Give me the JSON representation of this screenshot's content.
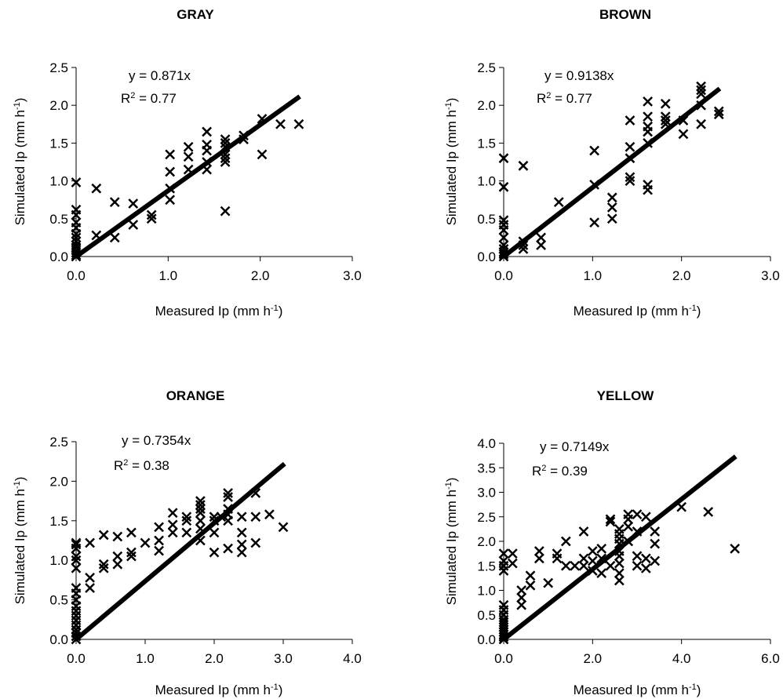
{
  "chart_data": [
    {
      "type": "scatter",
      "title": "GRAY",
      "xlabel": "Measured Ip  (mm h",
      "ylabel": "Simulated Ip  (mm h",
      "label_unit_sup": "-1",
      "label_close": ")",
      "xlim": [
        0,
        3
      ],
      "ylim": [
        0,
        2.5
      ],
      "xticks": [
        "0.0",
        "1.0",
        "2.0",
        "3.0"
      ],
      "yticks": [
        "0.0",
        "0.5",
        "1.0",
        "1.5",
        "2.0",
        "2.5"
      ],
      "fit": {
        "slope": 0.871,
        "x_end": 2.43
      },
      "equation": "y = 0.871x",
      "r2_prefix": "R",
      "r2_sup": "2",
      "r2_value": " = 0.77",
      "points": [
        [
          0,
          0
        ],
        [
          0,
          0.02
        ],
        [
          0,
          0.05
        ],
        [
          0,
          0.08
        ],
        [
          0,
          0.12
        ],
        [
          0,
          0.15
        ],
        [
          0,
          0.2
        ],
        [
          0,
          0.25
        ],
        [
          0,
          0.3
        ],
        [
          0,
          0.38
        ],
        [
          0,
          0.45
        ],
        [
          0,
          0.55
        ],
        [
          0,
          0.62
        ],
        [
          0,
          0.98
        ],
        [
          0.22,
          0.28
        ],
        [
          0.22,
          0.9
        ],
        [
          0.42,
          0.25
        ],
        [
          0.42,
          0.72
        ],
        [
          0.62,
          0.42
        ],
        [
          0.62,
          0.7
        ],
        [
          0.82,
          0.5
        ],
        [
          0.82,
          0.55
        ],
        [
          1.02,
          0.75
        ],
        [
          1.02,
          0.9
        ],
        [
          1.02,
          1.12
        ],
        [
          1.02,
          1.35
        ],
        [
          1.22,
          1.15
        ],
        [
          1.22,
          1.32
        ],
        [
          1.22,
          1.45
        ],
        [
          1.42,
          1.15
        ],
        [
          1.42,
          1.25
        ],
        [
          1.42,
          1.4
        ],
        [
          1.42,
          1.48
        ],
        [
          1.42,
          1.65
        ],
        [
          1.62,
          1.25
        ],
        [
          1.62,
          1.3
        ],
        [
          1.62,
          1.35
        ],
        [
          1.62,
          1.45
        ],
        [
          1.62,
          1.5
        ],
        [
          1.62,
          1.55
        ],
        [
          1.62,
          0.6
        ],
        [
          1.82,
          1.55
        ],
        [
          1.82,
          1.6
        ],
        [
          2.02,
          1.35
        ],
        [
          2.02,
          1.82
        ],
        [
          2.22,
          1.75
        ],
        [
          2.42,
          1.75
        ]
      ]
    },
    {
      "type": "scatter",
      "title": "BROWN",
      "xlabel": "Measured Ip  (mm h",
      "ylabel": "Simulated Ip  (mm h",
      "label_unit_sup": "-1",
      "label_close": ")",
      "xlim": [
        0,
        3
      ],
      "ylim": [
        0,
        2.5
      ],
      "xticks": [
        "0.0",
        "1.0",
        "2.0",
        "3.0"
      ],
      "yticks": [
        "0.0",
        "0.5",
        "1.0",
        "1.5",
        "2.0",
        "2.5"
      ],
      "fit": {
        "slope": 0.9138,
        "x_end": 2.43
      },
      "equation": "y = 0.9138x",
      "r2_prefix": "R",
      "r2_sup": "2",
      "r2_value": " = 0.77",
      "points": [
        [
          0,
          0
        ],
        [
          0,
          0.03
        ],
        [
          0,
          0.06
        ],
        [
          0,
          0.1
        ],
        [
          0,
          0.15
        ],
        [
          0,
          0.25
        ],
        [
          0,
          0.35
        ],
        [
          0,
          0.42
        ],
        [
          0,
          0.48
        ],
        [
          0,
          0.92
        ],
        [
          0,
          1.3
        ],
        [
          0.22,
          0.1
        ],
        [
          0.22,
          0.15
        ],
        [
          0.22,
          0.2
        ],
        [
          0.22,
          1.2
        ],
        [
          0.42,
          0.15
        ],
        [
          0.42,
          0.25
        ],
        [
          0.62,
          0.72
        ],
        [
          1.02,
          0.45
        ],
        [
          1.02,
          0.95
        ],
        [
          1.02,
          1.4
        ],
        [
          1.22,
          0.5
        ],
        [
          1.22,
          0.65
        ],
        [
          1.22,
          0.78
        ],
        [
          1.42,
          1.0
        ],
        [
          1.42,
          1.05
        ],
        [
          1.42,
          1.3
        ],
        [
          1.42,
          1.45
        ],
        [
          1.42,
          1.8
        ],
        [
          1.62,
          0.88
        ],
        [
          1.62,
          0.95
        ],
        [
          1.62,
          1.5
        ],
        [
          1.62,
          1.65
        ],
        [
          1.62,
          1.72
        ],
        [
          1.62,
          1.85
        ],
        [
          1.62,
          2.05
        ],
        [
          1.82,
          1.75
        ],
        [
          1.82,
          1.8
        ],
        [
          1.82,
          1.85
        ],
        [
          1.82,
          2.02
        ],
        [
          2.02,
          1.62
        ],
        [
          2.02,
          1.8
        ],
        [
          2.22,
          1.75
        ],
        [
          2.22,
          2.0
        ],
        [
          2.22,
          2.15
        ],
        [
          2.22,
          2.2
        ],
        [
          2.22,
          2.25
        ],
        [
          2.42,
          1.88
        ],
        [
          2.42,
          1.92
        ]
      ]
    },
    {
      "type": "scatter",
      "title": "ORANGE",
      "xlabel": "Measured Ip  (mm h",
      "ylabel": "Simulated Ip  (mm h",
      "label_unit_sup": "-1",
      "label_close": ")",
      "xlim": [
        0,
        4
      ],
      "ylim": [
        0,
        2.5
      ],
      "xticks": [
        "0.0",
        "1.0",
        "2.0",
        "3.0",
        "4.0"
      ],
      "yticks": [
        "0.0",
        "0.5",
        "1.0",
        "1.5",
        "2.0",
        "2.5"
      ],
      "fit": {
        "slope": 0.7354,
        "x_end": 3.02
      },
      "equation": "y = 0.7354x",
      "r2_prefix": "R",
      "r2_sup": "2",
      "r2_value": " = 0.38",
      "points": [
        [
          0,
          0
        ],
        [
          0,
          0.04
        ],
        [
          0,
          0.08
        ],
        [
          0,
          0.12
        ],
        [
          0,
          0.18
        ],
        [
          0,
          0.24
        ],
        [
          0,
          0.3
        ],
        [
          0,
          0.36
        ],
        [
          0,
          0.42
        ],
        [
          0,
          0.5
        ],
        [
          0,
          0.58
        ],
        [
          0,
          0.65
        ],
        [
          0,
          0.9
        ],
        [
          0,
          1.0
        ],
        [
          0,
          1.05
        ],
        [
          0,
          1.15
        ],
        [
          0,
          1.2
        ],
        [
          0,
          1.22
        ],
        [
          0.2,
          0.65
        ],
        [
          0.2,
          0.78
        ],
        [
          0.2,
          1.22
        ],
        [
          0.4,
          0.9
        ],
        [
          0.4,
          0.95
        ],
        [
          0.4,
          1.32
        ],
        [
          0.6,
          0.95
        ],
        [
          0.6,
          1.05
        ],
        [
          0.6,
          1.3
        ],
        [
          0.8,
          1.05
        ],
        [
          0.8,
          1.1
        ],
        [
          0.8,
          1.35
        ],
        [
          1.0,
          1.22
        ],
        [
          1.2,
          1.12
        ],
        [
          1.2,
          1.25
        ],
        [
          1.2,
          1.42
        ],
        [
          1.4,
          1.35
        ],
        [
          1.4,
          1.45
        ],
        [
          1.4,
          1.6
        ],
        [
          1.6,
          1.35
        ],
        [
          1.6,
          1.5
        ],
        [
          1.6,
          1.55
        ],
        [
          1.8,
          1.25
        ],
        [
          1.8,
          1.4
        ],
        [
          1.8,
          1.5
        ],
        [
          1.8,
          1.6
        ],
        [
          1.8,
          1.65
        ],
        [
          1.8,
          1.7
        ],
        [
          1.8,
          1.75
        ],
        [
          2.0,
          1.1
        ],
        [
          2.0,
          1.35
        ],
        [
          2.0,
          1.5
        ],
        [
          2.0,
          1.55
        ],
        [
          2.1,
          1.55
        ],
        [
          2.2,
          1.15
        ],
        [
          2.2,
          1.5
        ],
        [
          2.2,
          1.58
        ],
        [
          2.2,
          1.65
        ],
        [
          2.2,
          1.8
        ],
        [
          2.2,
          1.85
        ],
        [
          2.4,
          1.1
        ],
        [
          2.4,
          1.2
        ],
        [
          2.4,
          1.35
        ],
        [
          2.4,
          1.55
        ],
        [
          2.6,
          1.22
        ],
        [
          2.6,
          1.55
        ],
        [
          2.6,
          1.85
        ],
        [
          2.8,
          1.58
        ],
        [
          3.0,
          1.42
        ]
      ]
    },
    {
      "type": "scatter",
      "title": "YELLOW",
      "xlabel": "Measured Ip  (mm h",
      "ylabel": "Simulated Ip  (mm h",
      "label_unit_sup": "-1",
      "label_close": ")",
      "xlim": [
        0,
        6
      ],
      "ylim": [
        0,
        4
      ],
      "xticks": [
        "0.0",
        "2.0",
        "4.0",
        "6.0"
      ],
      "yticks": [
        "0.0",
        "0.5",
        "1.0",
        "1.5",
        "2.0",
        "2.5",
        "3.0",
        "3.5",
        "4.0"
      ],
      "fit": {
        "slope": 0.7149,
        "x_end": 5.22
      },
      "equation": "y = 0.7149x",
      "r2_prefix": "R",
      "r2_sup": "2",
      "r2_value": " = 0.39",
      "points": [
        [
          0,
          0
        ],
        [
          0,
          0.05
        ],
        [
          0,
          0.1
        ],
        [
          0,
          0.15
        ],
        [
          0,
          0.2
        ],
        [
          0,
          0.25
        ],
        [
          0,
          0.3
        ],
        [
          0,
          0.35
        ],
        [
          0,
          0.4
        ],
        [
          0,
          0.5
        ],
        [
          0,
          0.6
        ],
        [
          0,
          0.7
        ],
        [
          0,
          1.4
        ],
        [
          0,
          1.5
        ],
        [
          0,
          1.6
        ],
        [
          0,
          1.75
        ],
        [
          0.2,
          1.55
        ],
        [
          0.2,
          1.75
        ],
        [
          0.4,
          0.7
        ],
        [
          0.4,
          0.85
        ],
        [
          0.4,
          1.0
        ],
        [
          0.6,
          1.1
        ],
        [
          0.6,
          1.3
        ],
        [
          0.8,
          1.65
        ],
        [
          0.8,
          1.8
        ],
        [
          1.0,
          1.15
        ],
        [
          1.2,
          1.65
        ],
        [
          1.2,
          1.75
        ],
        [
          1.4,
          1.5
        ],
        [
          1.4,
          2.0
        ],
        [
          1.6,
          1.5
        ],
        [
          1.8,
          1.5
        ],
        [
          1.8,
          1.65
        ],
        [
          1.8,
          2.2
        ],
        [
          2.0,
          1.4
        ],
        [
          2.0,
          1.6
        ],
        [
          2.0,
          1.8
        ],
        [
          2.2,
          1.35
        ],
        [
          2.2,
          1.65
        ],
        [
          2.2,
          1.85
        ],
        [
          2.4,
          1.5
        ],
        [
          2.4,
          2.4
        ],
        [
          2.4,
          2.45
        ],
        [
          2.6,
          1.2
        ],
        [
          2.6,
          1.35
        ],
        [
          2.6,
          1.55
        ],
        [
          2.6,
          1.7
        ],
        [
          2.6,
          1.8
        ],
        [
          2.6,
          1.95
        ],
        [
          2.6,
          2.05
        ],
        [
          2.6,
          2.15
        ],
        [
          2.6,
          2.25
        ],
        [
          2.8,
          2.0
        ],
        [
          2.8,
          2.3
        ],
        [
          2.8,
          2.45
        ],
        [
          2.8,
          2.55
        ],
        [
          3.0,
          1.5
        ],
        [
          3.0,
          1.7
        ],
        [
          3.0,
          2.2
        ],
        [
          3.0,
          2.55
        ],
        [
          3.2,
          1.45
        ],
        [
          3.2,
          1.65
        ],
        [
          3.2,
          2.5
        ],
        [
          3.4,
          1.6
        ],
        [
          3.4,
          1.95
        ],
        [
          3.4,
          2.2
        ],
        [
          4.0,
          2.7
        ],
        [
          4.6,
          2.6
        ],
        [
          5.2,
          1.85
        ]
      ]
    }
  ]
}
